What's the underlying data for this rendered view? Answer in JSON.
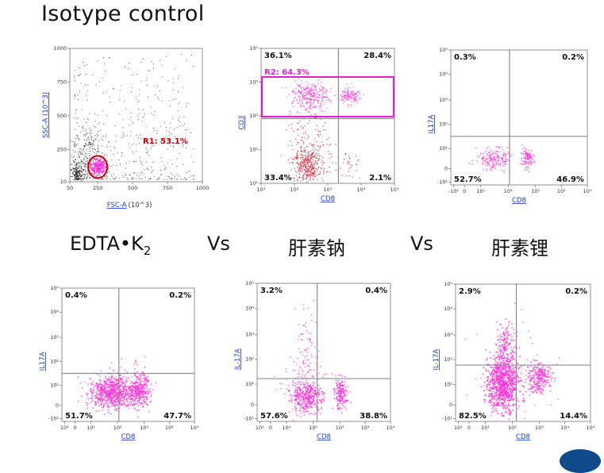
{
  "title": "Isotype control",
  "comparison": {
    "edta_main": "EDTA•K",
    "edta_sub": "2",
    "vs1": "Vs",
    "heparin_sodium": "肝素钠",
    "vs2": "Vs",
    "heparin_lithium": "肝素锂"
  },
  "colors": {
    "dot_magenta": "#ff2bd6",
    "dot_red": "#d0102a",
    "dot_black": "#222222",
    "gate_red": "#c00000",
    "gate_magenta": "#e020d0",
    "quad_line": "#8c8c8c",
    "axis_link": "#1f3fd6"
  },
  "chart_data": [
    {
      "type": "scatter",
      "panel": "fsc-ssc",
      "xlabel_link": "FSC-A",
      "xlabel_rest": "(10^3)",
      "ylabel": "SSC-A (10^3)",
      "xticks": [
        "50",
        "250",
        "500",
        "750",
        "1000"
      ],
      "yticks": [
        "10",
        "250",
        "500",
        "750",
        "1000"
      ],
      "xlim": [
        50,
        1000
      ],
      "ylim": [
        10,
        1000
      ],
      "scale": "linear",
      "gate": {
        "name": "R1",
        "percent": "R1: 53.1%",
        "center": [
          250,
          120
        ]
      }
    },
    {
      "type": "scatter",
      "panel": "cd8-cd3",
      "xlabel": "CD8",
      "ylabel": "CD3",
      "xticks": [
        "10¹",
        "10²",
        "10³",
        "10⁴",
        "10⁵"
      ],
      "yticks": [
        "10¹",
        "10²",
        "10³",
        "10⁴",
        "10⁵"
      ],
      "scale": "log",
      "gate": {
        "name": "R2",
        "percent": "R2: 64.3%"
      },
      "quadrants": {
        "UL": "36.1%",
        "UR": "28.4%",
        "LL": "33.4%",
        "LR": "2.1%"
      }
    },
    {
      "type": "scatter",
      "panel": "isotype-cd8-il17a",
      "xlabel": "CD8",
      "ylabel": "IL17A",
      "xticks": [
        "-10¹",
        "0",
        "10¹",
        "10²",
        "10³",
        "10⁴",
        "10⁵"
      ],
      "yticks": [
        "-10¹",
        "0",
        "10¹",
        "10²",
        "10³",
        "10⁴",
        "10⁵"
      ],
      "scale": "log",
      "quadrants": {
        "UL": "0.3%",
        "UR": "0.2%",
        "LL": "52.7%",
        "LR": "46.9%"
      }
    },
    {
      "type": "scatter",
      "panel": "edta-cd8-il17a",
      "xlabel": "CD8",
      "ylabel": "IL17A",
      "xticks": [
        "10¹",
        "0",
        "10¹",
        "10²",
        "10³",
        "10⁴",
        "10⁵"
      ],
      "yticks": [
        "-10¹",
        "0",
        "10¹",
        "10²",
        "10³",
        "10⁴",
        "10⁵"
      ],
      "scale": "log",
      "quadrants": {
        "UL": "0.4%",
        "UR": "0.2%",
        "LL": "51.7%",
        "LR": "47.7%"
      }
    },
    {
      "type": "scatter",
      "panel": "heparin-sodium-cd8-il17a",
      "xlabel": "CD8",
      "ylabel": "IL-17A",
      "xticks": [
        "10¹",
        "0",
        "10¹",
        "10²",
        "10³",
        "10⁴",
        "10⁵"
      ],
      "yticks": [
        "-10¹",
        "0",
        "10¹",
        "10²",
        "10³",
        "10⁴",
        "10⁵"
      ],
      "scale": "log",
      "quadrants": {
        "UL": "3.2%",
        "UR": "0.4%",
        "LL": "57.6%",
        "LR": "38.8%"
      }
    },
    {
      "type": "scatter",
      "panel": "heparin-lithium-cd8-il17a",
      "xlabel": "CD8",
      "ylabel": "IL-17A",
      "xticks": [
        "10¹",
        "0",
        "10¹",
        "10²",
        "10³",
        "10⁴",
        "10⁵"
      ],
      "yticks": [
        "-10¹",
        "0",
        "10¹",
        "10²",
        "10³",
        "10⁴",
        "10⁵"
      ],
      "scale": "log",
      "quadrants": {
        "UL": "2.9%",
        "UR": "0.2%",
        "LL": "82.5%",
        "LR": "14.4%"
      }
    }
  ]
}
